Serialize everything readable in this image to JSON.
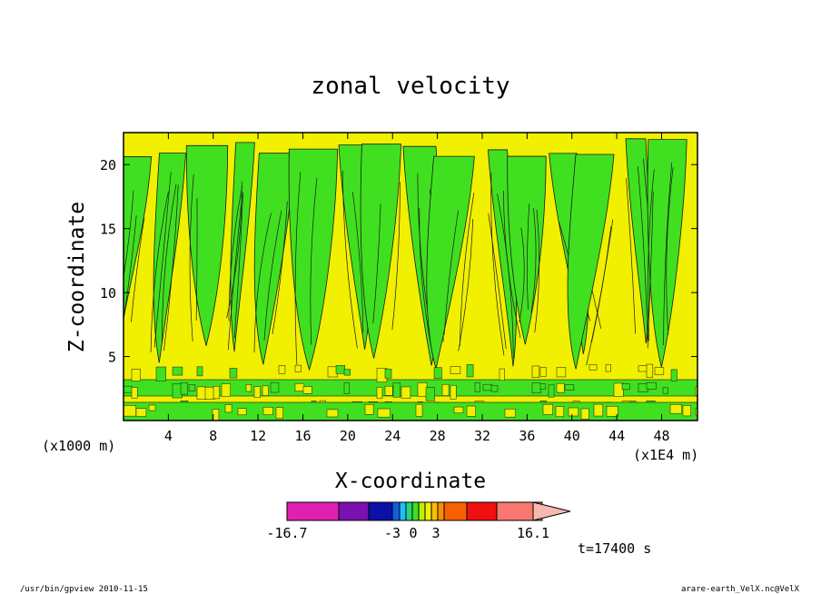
{
  "chart_data": {
    "type": "heatmap",
    "title": "zonal velocity",
    "xlabel": "X-coordinate",
    "ylabel": "Z-coordinate",
    "x_unit": "(x1000 m)",
    "x_scale_note": "(x1E4 m)",
    "x_ticks": [
      4,
      8,
      12,
      16,
      20,
      24,
      28,
      32,
      36,
      40,
      44,
      48
    ],
    "y_ticks": [
      5,
      10,
      15,
      20
    ],
    "xlim": [
      0,
      51.2
    ],
    "ylim": [
      0,
      22.5
    ],
    "colorbar": {
      "min_label": "-16.7",
      "labels": [
        "-3",
        "0",
        "3"
      ],
      "max_label": "16.1",
      "colors": [
        "#e020b0",
        "#7a10b0",
        "#0a10a8",
        "#1060e0",
        "#20c0f0",
        "#20d880",
        "#40e020",
        "#c0f000",
        "#f0f000",
        "#f8c000",
        "#f89000",
        "#f86000",
        "#f01010",
        "#f87870",
        "#f8b8b0"
      ]
    },
    "dominant_colors": {
      "yellow": "#f0f000",
      "green": "#40e020"
    },
    "time_label": "t=17400 s",
    "footer_left": "/usr/bin/gpview   2010-11-15",
    "footer_right": "arare-earth_VelX.nc@VelX"
  }
}
